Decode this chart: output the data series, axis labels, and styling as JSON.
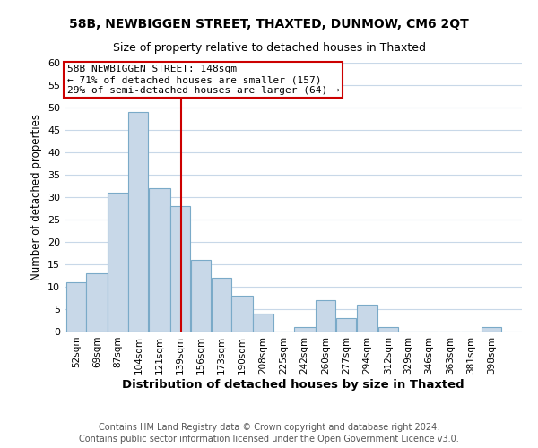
{
  "title": "58B, NEWBIGGEN STREET, THAXTED, DUNMOW, CM6 2QT",
  "subtitle": "Size of property relative to detached houses in Thaxted",
  "xlabel": "Distribution of detached houses by size in Thaxted",
  "ylabel": "Number of detached properties",
  "bin_labels": [
    "52sqm",
    "69sqm",
    "87sqm",
    "104sqm",
    "121sqm",
    "139sqm",
    "156sqm",
    "173sqm",
    "190sqm",
    "208sqm",
    "225sqm",
    "242sqm",
    "260sqm",
    "277sqm",
    "294sqm",
    "312sqm",
    "329sqm",
    "346sqm",
    "363sqm",
    "381sqm",
    "398sqm"
  ],
  "bin_edges": [
    52,
    69,
    87,
    104,
    121,
    139,
    156,
    173,
    190,
    208,
    225,
    242,
    260,
    277,
    294,
    312,
    329,
    346,
    363,
    381,
    398,
    415
  ],
  "counts": [
    11,
    13,
    31,
    49,
    32,
    28,
    16,
    12,
    8,
    4,
    0,
    1,
    7,
    3,
    6,
    1,
    0,
    0,
    0,
    0,
    1
  ],
  "bar_color": "#c8d8e8",
  "bar_edge_color": "#7aaac8",
  "property_size": 148,
  "vline_color": "#cc0000",
  "annotation_line1": "58B NEWBIGGEN STREET: 148sqm",
  "annotation_line2": "← 71% of detached houses are smaller (157)",
  "annotation_line3": "29% of semi-detached houses are larger (64) →",
  "annotation_box_edge": "#cc0000",
  "ylim": [
    0,
    60
  ],
  "yticks": [
    0,
    5,
    10,
    15,
    20,
    25,
    30,
    35,
    40,
    45,
    50,
    55,
    60
  ],
  "footer_line1": "Contains HM Land Registry data © Crown copyright and database right 2024.",
  "footer_line2": "Contains public sector information licensed under the Open Government Licence v3.0.",
  "background_color": "#ffffff",
  "grid_color": "#c8d8e8",
  "title_fontsize": 10,
  "subtitle_fontsize": 9,
  "annotation_fontsize": 8,
  "footer_fontsize": 7
}
